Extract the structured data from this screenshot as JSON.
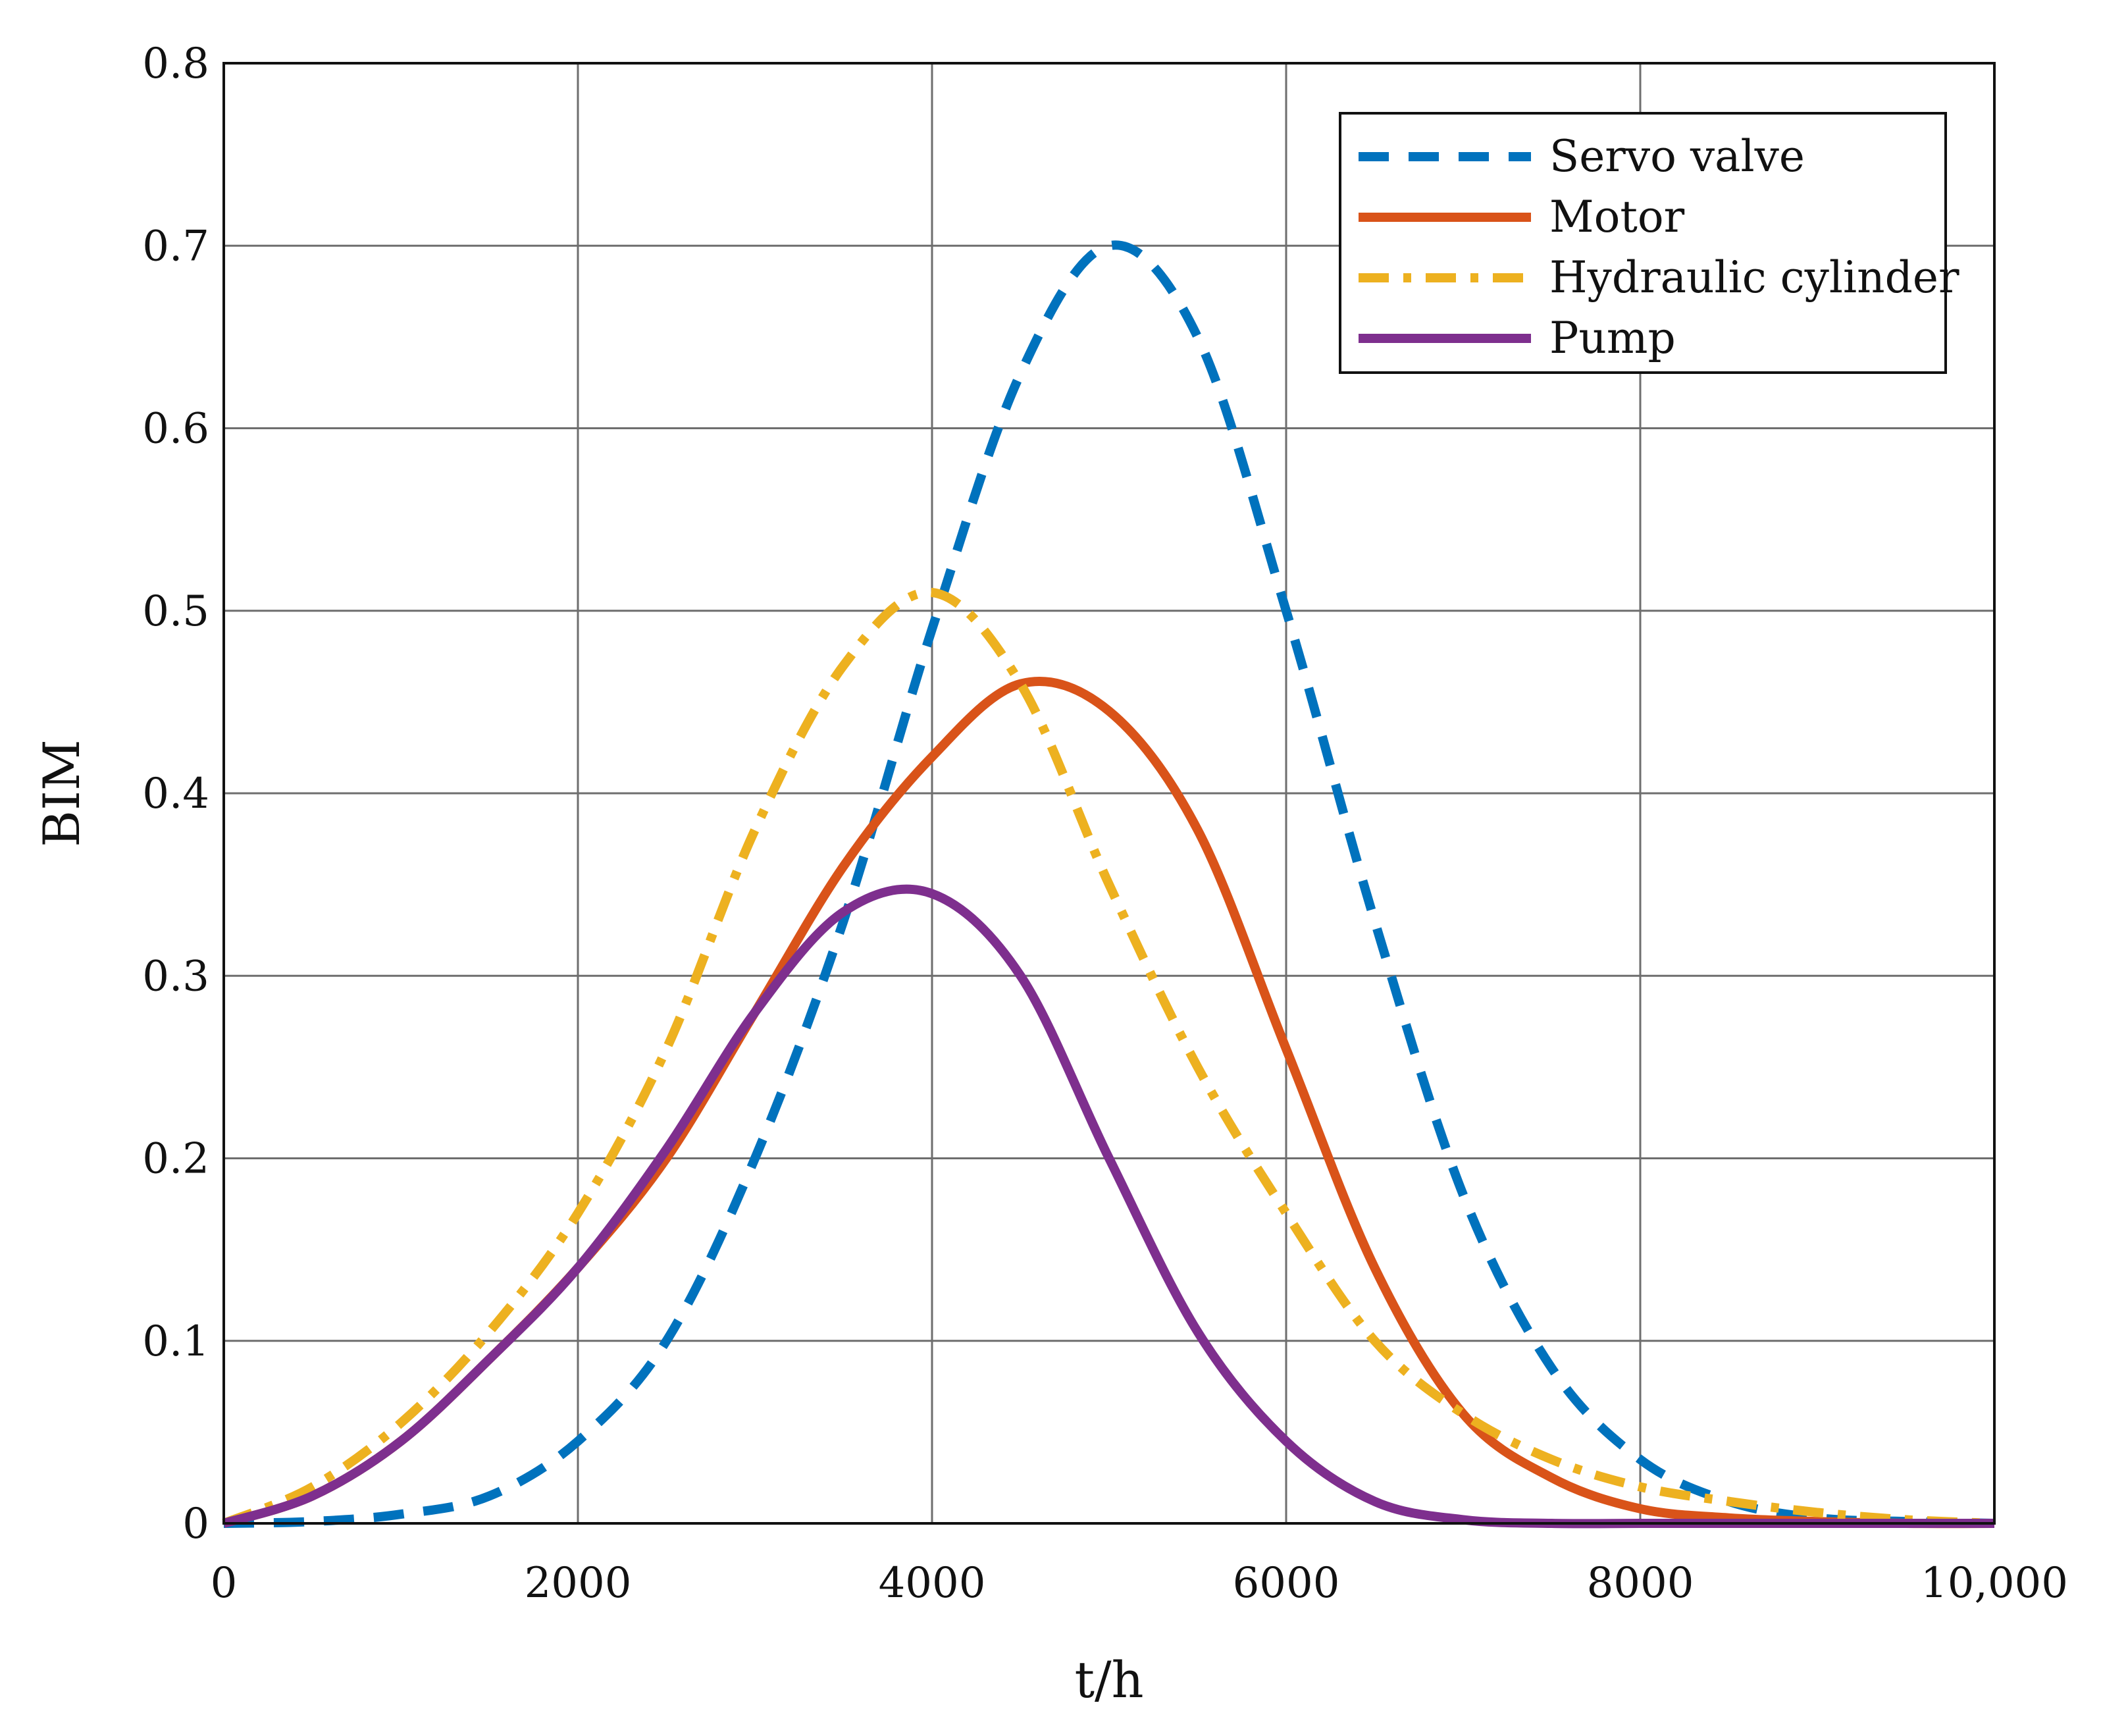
{
  "chart_data": {
    "type": "line",
    "title": "",
    "xlabel": "t/h",
    "ylabel": "BIM",
    "xlim": [
      0,
      10000
    ],
    "ylim": [
      0,
      0.8
    ],
    "x_ticks": [
      0,
      2000,
      4000,
      6000,
      8000,
      10000
    ],
    "x_tick_labels": [
      "0",
      "2000",
      "4000",
      "6000",
      "8000",
      "10,000"
    ],
    "y_ticks": [
      0,
      0.1,
      0.2,
      0.3,
      0.4,
      0.5,
      0.6,
      0.7,
      0.8
    ],
    "y_tick_labels": [
      "0",
      "0.1",
      "0.2",
      "0.3",
      "0.4",
      "0.5",
      "0.6",
      "0.7",
      "0.8"
    ],
    "grid": true,
    "legend_position": "top-right",
    "x": [
      0,
      500,
      1000,
      1500,
      2000,
      2500,
      3000,
      3500,
      4000,
      4500,
      5000,
      5500,
      6000,
      6500,
      7000,
      7500,
      8000,
      8500,
      9000,
      9500,
      10000
    ],
    "series": [
      {
        "name": "Servo valve",
        "color": "#0072BD",
        "style": "dashed",
        "values": [
          0.0,
          0.001,
          0.005,
          0.015,
          0.045,
          0.1,
          0.2,
          0.33,
          0.49,
          0.63,
          0.7,
          0.65,
          0.5,
          0.33,
          0.18,
          0.085,
          0.035,
          0.012,
          0.003,
          0.001,
          0.0
        ]
      },
      {
        "name": "Motor",
        "color": "#D95319",
        "style": "solid",
        "values": [
          0.0,
          0.015,
          0.045,
          0.09,
          0.14,
          0.2,
          0.28,
          0.36,
          0.42,
          0.46,
          0.445,
          0.38,
          0.26,
          0.14,
          0.06,
          0.025,
          0.008,
          0.003,
          0.001,
          0.0,
          0.0
        ]
      },
      {
        "name": "Hydraulic cylinder",
        "color": "#EDB120",
        "style": "dashdot",
        "values": [
          0.0,
          0.02,
          0.055,
          0.105,
          0.17,
          0.26,
          0.38,
          0.47,
          0.51,
          0.46,
          0.35,
          0.25,
          0.17,
          0.1,
          0.06,
          0.035,
          0.02,
          0.012,
          0.006,
          0.002,
          0.0
        ]
      },
      {
        "name": "Pump",
        "color": "#7E2F8E",
        "style": "solid",
        "values": [
          0.0,
          0.015,
          0.045,
          0.09,
          0.14,
          0.205,
          0.28,
          0.335,
          0.345,
          0.3,
          0.2,
          0.105,
          0.045,
          0.012,
          0.002,
          0.0,
          0.0,
          0.0,
          0.0,
          0.0,
          0.0
        ]
      }
    ]
  }
}
